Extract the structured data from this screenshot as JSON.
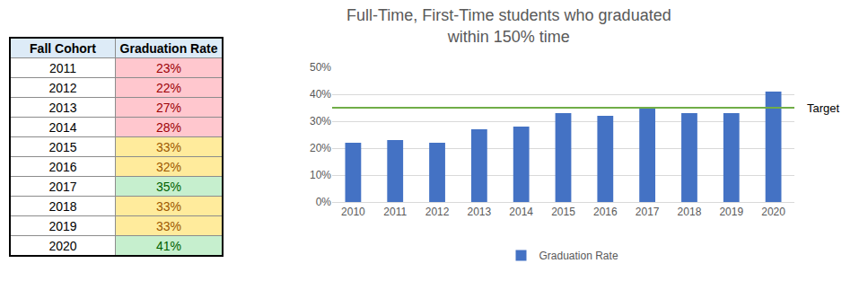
{
  "table": {
    "header": [
      "Fall Cohort",
      "Graduation Rate"
    ],
    "rows": [
      {
        "cells": [
          "2011",
          "23%"
        ],
        "color": "red"
      },
      {
        "cells": [
          "2012",
          "22%"
        ],
        "color": "red"
      },
      {
        "cells": [
          "2013",
          "27%"
        ],
        "color": "red"
      },
      {
        "cells": [
          "2014",
          "28%"
        ],
        "color": "red"
      },
      {
        "cells": [
          "2015",
          "33%"
        ],
        "color": "yellow"
      },
      {
        "cells": [
          "2016",
          "32%"
        ],
        "color": "yellow"
      },
      {
        "cells": [
          "2017",
          "35%"
        ],
        "color": "green"
      },
      {
        "cells": [
          "2018",
          "33%"
        ],
        "color": "yellow"
      },
      {
        "cells": [
          "2019",
          "33%"
        ],
        "color": "yellow"
      },
      {
        "cells": [
          "2020",
          "41%"
        ],
        "color": "green"
      }
    ]
  },
  "chart_data": {
    "type": "bar",
    "title": "Full-Time, First-Time students who graduated within 150% time",
    "categories": [
      "2010",
      "2011",
      "2012",
      "2013",
      "2014",
      "2015",
      "2016",
      "2017",
      "2018",
      "2019",
      "2020"
    ],
    "series": [
      {
        "name": "Graduation Rate",
        "color": "#4472c4",
        "values": [
          22,
          23,
          22,
          27,
          28,
          33,
          32,
          35,
          33,
          33,
          41
        ]
      }
    ],
    "ylim": [
      0,
      50
    ],
    "yticks": [
      {
        "value": 0,
        "label": "0%"
      },
      {
        "value": 10,
        "label": "10%"
      },
      {
        "value": 20,
        "label": "20%"
      },
      {
        "value": 30,
        "label": "30%"
      },
      {
        "value": 40,
        "label": "40%"
      },
      {
        "value": 50,
        "label": "50%"
      }
    ],
    "target_line": {
      "value": 35,
      "label": "Target",
      "color": "#70ad47"
    },
    "grid": true,
    "legend": "bottom"
  }
}
